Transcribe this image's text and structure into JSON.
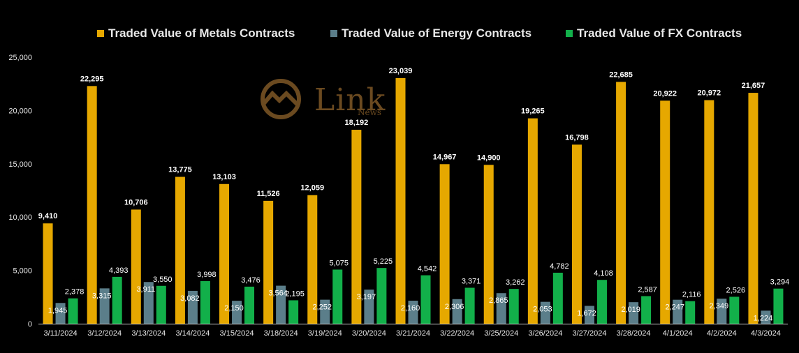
{
  "chart_data": {
    "type": "bar",
    "title": "",
    "xlabel": "",
    "ylabel": "",
    "ylim": [
      0,
      25000
    ],
    "yticks": [
      "0",
      "5,000",
      "10,000",
      "15,000",
      "20,000",
      "25,000"
    ],
    "yticks_values": [
      0,
      5000,
      10000,
      15000,
      20000,
      25000
    ],
    "grid": false,
    "legend_position": "top",
    "categories": [
      "3/11/2024",
      "3/12/2024",
      "3/13/2024",
      "3/14/2024",
      "3/15/2024",
      "3/18/2024",
      "3/19/2024",
      "3/20/2024",
      "3/21/2024",
      "3/22/2024",
      "3/25/2024",
      "3/26/2024",
      "3/27/2024",
      "3/28/2024",
      "4/1/2024",
      "4/2/2024",
      "4/3/2024"
    ],
    "series": [
      {
        "name": "Traded Value of Metals Contracts",
        "color": "#E6A800",
        "values": [
          9410,
          22295,
          10706,
          13775,
          13103,
          11526,
          12059,
          18192,
          23039,
          14967,
          14900,
          19265,
          16798,
          22685,
          20922,
          20972,
          21657
        ],
        "labels": [
          "9,410",
          "22,295",
          "10,706",
          "13,775",
          "13,103",
          "11,526",
          "12,059",
          "18,192",
          "23,039",
          "14,967",
          "14,900",
          "19,265",
          "16,798",
          "22,685",
          "20,922",
          "20,972",
          "21,657"
        ]
      },
      {
        "name": "Traded Value of Energy Contracts",
        "color": "#5B7E8A",
        "values": [
          1945,
          3315,
          3911,
          3082,
          2150,
          3564,
          2252,
          3197,
          2160,
          2306,
          2865,
          2053,
          1672,
          2019,
          2247,
          2349,
          1224
        ],
        "labels": [
          "1,945",
          "3,315",
          "3,911",
          "3,082",
          "2,150",
          "3,564",
          "2,252",
          "3,197",
          "2,160",
          "2,306",
          "2,865",
          "2,053",
          "1,672",
          "2,019",
          "2,247",
          "2,349",
          "1,224"
        ]
      },
      {
        "name": "Traded Value of FX Contracts",
        "color": "#12B04A",
        "values": [
          2378,
          4393,
          3550,
          3998,
          3476,
          2195,
          5075,
          5225,
          4542,
          3371,
          3262,
          4782,
          4108,
          2587,
          2116,
          2526,
          3294
        ],
        "labels": [
          "2,378",
          "4,393",
          "3,550",
          "3,998",
          "3,476",
          "2,195",
          "5,075",
          "5,225",
          "4,542",
          "3,371",
          "3,262",
          "4,782",
          "4,108",
          "2,587",
          "2,116",
          "2,526",
          "3,294"
        ]
      }
    ]
  },
  "watermark": {
    "word": "Link",
    "sub": "News"
  }
}
